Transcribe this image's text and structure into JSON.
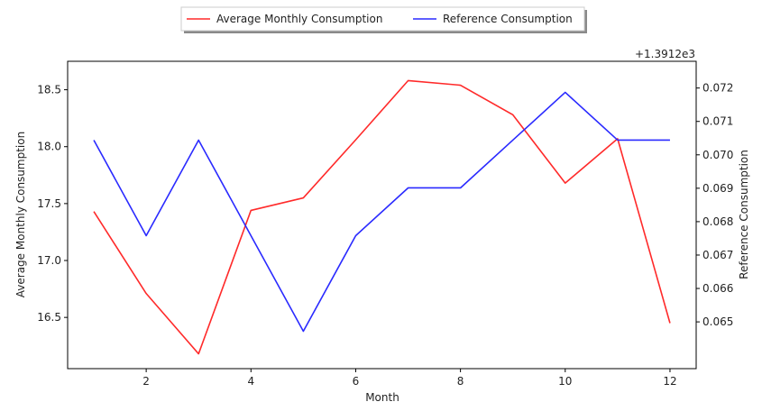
{
  "chart_data": {
    "type": "line",
    "x": [
      1,
      2,
      3,
      4,
      5,
      6,
      7,
      8,
      9,
      10,
      11,
      12
    ],
    "xlabel": "Month",
    "xlim": [
      0.5,
      12.5
    ],
    "xticks": [
      2,
      4,
      6,
      8,
      10,
      12
    ],
    "series": [
      {
        "name": "Average Monthly Consumption",
        "axis": "left",
        "color": "#ff2a2a",
        "values": [
          17.43,
          16.71,
          16.18,
          17.44,
          17.55,
          18.06,
          18.58,
          18.54,
          18.28,
          17.68,
          18.07,
          16.45
        ]
      },
      {
        "name": "Reference Consumption",
        "axis": "right",
        "color": "#2a2aff",
        "values": [
          1391.27044,
          1391.26758,
          1391.27044,
          1391.26758,
          1391.26472,
          1391.26758,
          1391.26901,
          1391.26901,
          1391.27044,
          1391.27187,
          1391.27044,
          1391.27044
        ]
      }
    ],
    "y_left": {
      "label": "Average Monthly Consumption",
      "lim": [
        16.05,
        18.75
      ],
      "ticks": [
        16.5,
        17.0,
        17.5,
        18.0,
        18.5
      ],
      "tick_labels": [
        "16.5",
        "17.0",
        "17.5",
        "18.0",
        "18.5"
      ]
    },
    "y_right": {
      "label": "Reference Consumption",
      "offset_text": "+1.3912e3",
      "lim": [
        1391.2636,
        1391.2728
      ],
      "ticks": [
        1391.265,
        1391.266,
        1391.267,
        1391.268,
        1391.269,
        1391.27,
        1391.271,
        1391.272
      ],
      "tick_labels": [
        "0.065",
        "0.066",
        "0.067",
        "0.068",
        "0.069",
        "0.070",
        "0.071",
        "0.072"
      ]
    },
    "grid": false,
    "legend": {
      "placement": "top-center, outside plot",
      "columns": 2
    }
  }
}
